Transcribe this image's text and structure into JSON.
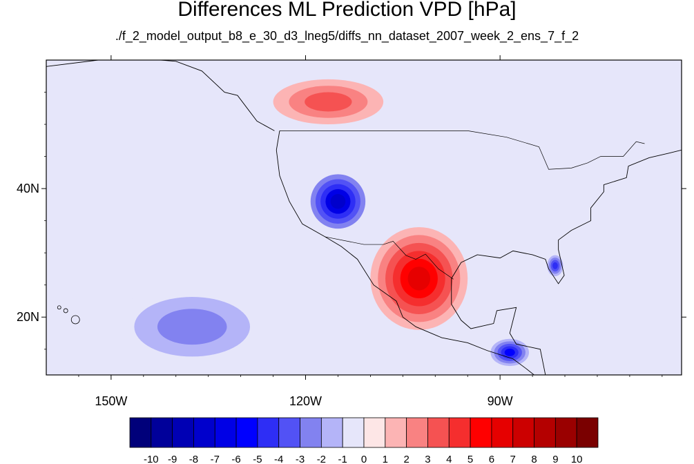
{
  "chart_data": {
    "type": "heatmap",
    "title": "Differences ML Prediction VPD [hPa]",
    "subtitle": "./f_2_model_output_b8_e_30_d3_lneg5/diffs_nn_dataset_2007_week_2_ens_7_f_2",
    "projection": "cylindrical-equidistant",
    "lon_range": [
      -160,
      -62
    ],
    "lat_range": [
      11,
      60
    ],
    "x_ticks": [
      {
        "value": -150,
        "label": "150W"
      },
      {
        "value": -120,
        "label": "120W"
      },
      {
        "value": -90,
        "label": "90W"
      }
    ],
    "y_ticks": [
      {
        "value": 20,
        "label": "20N"
      },
      {
        "value": 40,
        "label": "40N"
      }
    ],
    "colorbar": {
      "placement": "bottom",
      "labels": [
        "-10",
        "-9",
        "-8",
        "-7",
        "-6",
        "-5",
        "-4",
        "-3",
        "-2",
        "-1",
        "0",
        "1",
        "2",
        "3",
        "4",
        "5",
        "6",
        "7",
        "8",
        "9",
        "10"
      ],
      "colors": [
        "#00007a",
        "#00009a",
        "#0000b4",
        "#0000cc",
        "#0000e6",
        "#0000ff",
        "#2e2ef5",
        "#5252f5",
        "#8282f0",
        "#b4b4f8",
        "#e6e6fa",
        "#fde6e6",
        "#fcb4b4",
        "#f98282",
        "#f55252",
        "#f52e2e",
        "#ff0000",
        "#e60000",
        "#cc0000",
        "#b40000",
        "#9a0000",
        "#7a0000"
      ]
    },
    "regions": [
      {
        "name": "background",
        "lon": [
          -160,
          -62
        ],
        "lat": [
          11,
          60
        ],
        "value": -1
      },
      {
        "name": "southwest-us",
        "lon": [
          -120,
          -110
        ],
        "lat": [
          33,
          43
        ],
        "value": -8
      },
      {
        "name": "southern-plains-mexico",
        "lon": [
          -110,
          -95
        ],
        "lat": [
          18,
          34
        ],
        "value": 6
      },
      {
        "name": "east-pacific",
        "lon": [
          -150,
          -125
        ],
        "lat": [
          12,
          25
        ],
        "value": -3
      },
      {
        "name": "central-america",
        "lon": [
          -92,
          -85
        ],
        "lat": [
          12,
          17
        ],
        "value": -6
      },
      {
        "name": "pacific-northwest-offshore",
        "lon": [
          -125,
          -108
        ],
        "lat": [
          50,
          57
        ],
        "value": 3
      },
      {
        "name": "florida",
        "lon": [
          -83,
          -80
        ],
        "lat": [
          26,
          30
        ],
        "value": -5
      }
    ]
  }
}
